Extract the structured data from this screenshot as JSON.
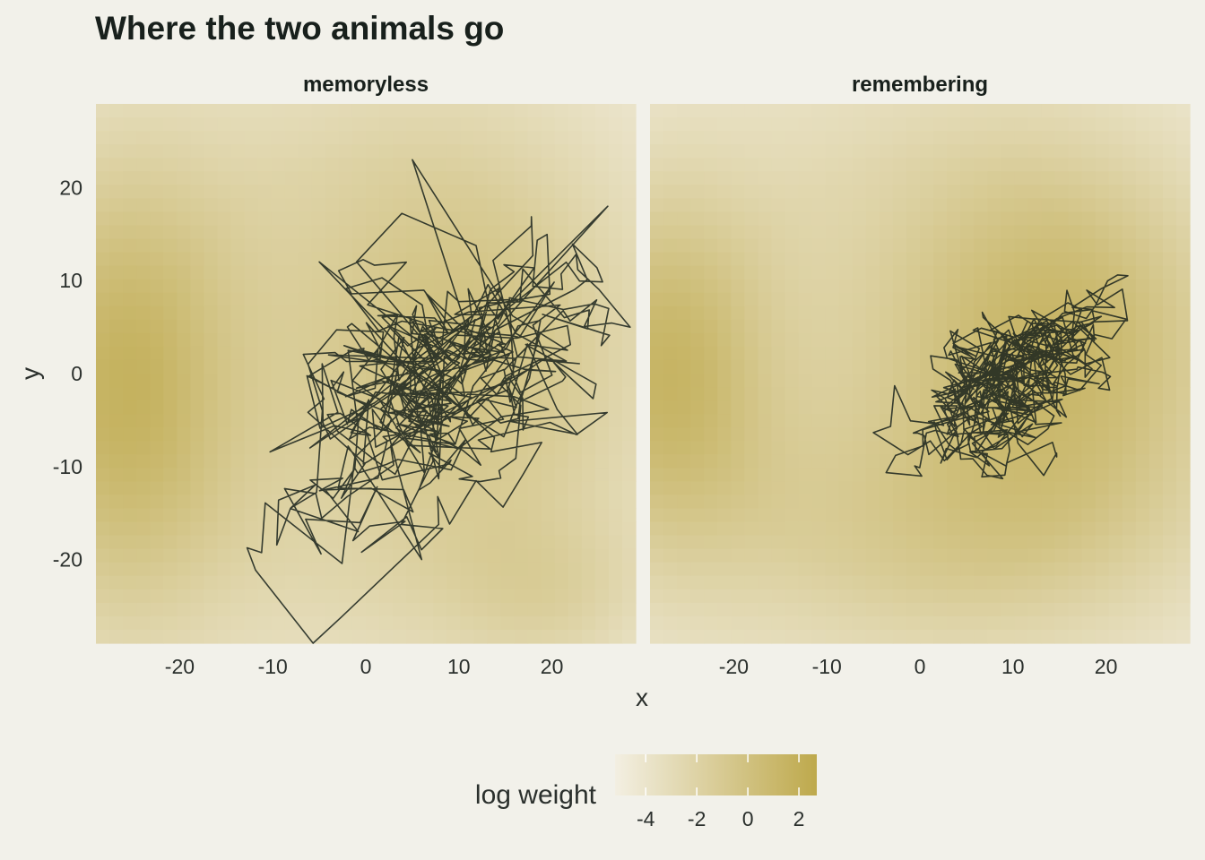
{
  "chart_data": {
    "type": "heatmap",
    "title": "Where the two animals go",
    "xlabel": "x",
    "ylabel": "y",
    "xlim": [
      -29,
      29
    ],
    "ylim": [
      -29,
      29
    ],
    "x_ticks": [
      -20,
      -10,
      0,
      10,
      20
    ],
    "y_ticks": [
      -20,
      -10,
      0,
      10,
      20
    ],
    "grid": false,
    "panels": [
      {
        "name": "memoryless",
        "weight_field": {
          "description_components": [
            {
              "center": [
                -27,
                -2
              ],
              "spread": [
                9,
                18
              ],
              "height": 1.0
            },
            {
              "center": [
                9,
                3
              ],
              "spread": [
                13,
                16
              ],
              "height": 0.6
            },
            {
              "center": [
                20,
                -24
              ],
              "spread": [
                8,
                6
              ],
              "height": 0.35
            }
          ]
        },
        "path": {
          "center": [
            9,
            -1
          ],
          "spread": [
            8,
            7
          ],
          "steps": 520,
          "outliers": [
            [
              5,
              23
            ],
            [
              -5,
              12
            ],
            [
              26,
              18
            ],
            [
              6,
              -20
            ],
            [
              -6,
              -8
            ],
            [
              -4,
              2
            ]
          ]
        }
      },
      {
        "name": "remembering",
        "weight_field": {
          "description_components": [
            {
              "center": [
                -28,
                0
              ],
              "spread": [
                8,
                14
              ],
              "height": 0.95
            },
            {
              "center": [
                14,
                5
              ],
              "spread": [
                13,
                13
              ],
              "height": 0.85
            },
            {
              "center": [
                6,
                -16
              ],
              "spread": [
                18,
                9
              ],
              "height": 0.45
            }
          ]
        },
        "path": {
          "center": [
            9.5,
            -0.5
          ],
          "spread": [
            4.5,
            3.8
          ],
          "steps": 620
        }
      }
    ],
    "legend": {
      "title": "log weight",
      "placement": "bottom",
      "ticks": [
        -4,
        -2,
        0,
        2
      ],
      "range": [
        -5.2,
        2.7
      ],
      "colors": [
        "#f3efe2",
        "#bea94c"
      ]
    }
  }
}
